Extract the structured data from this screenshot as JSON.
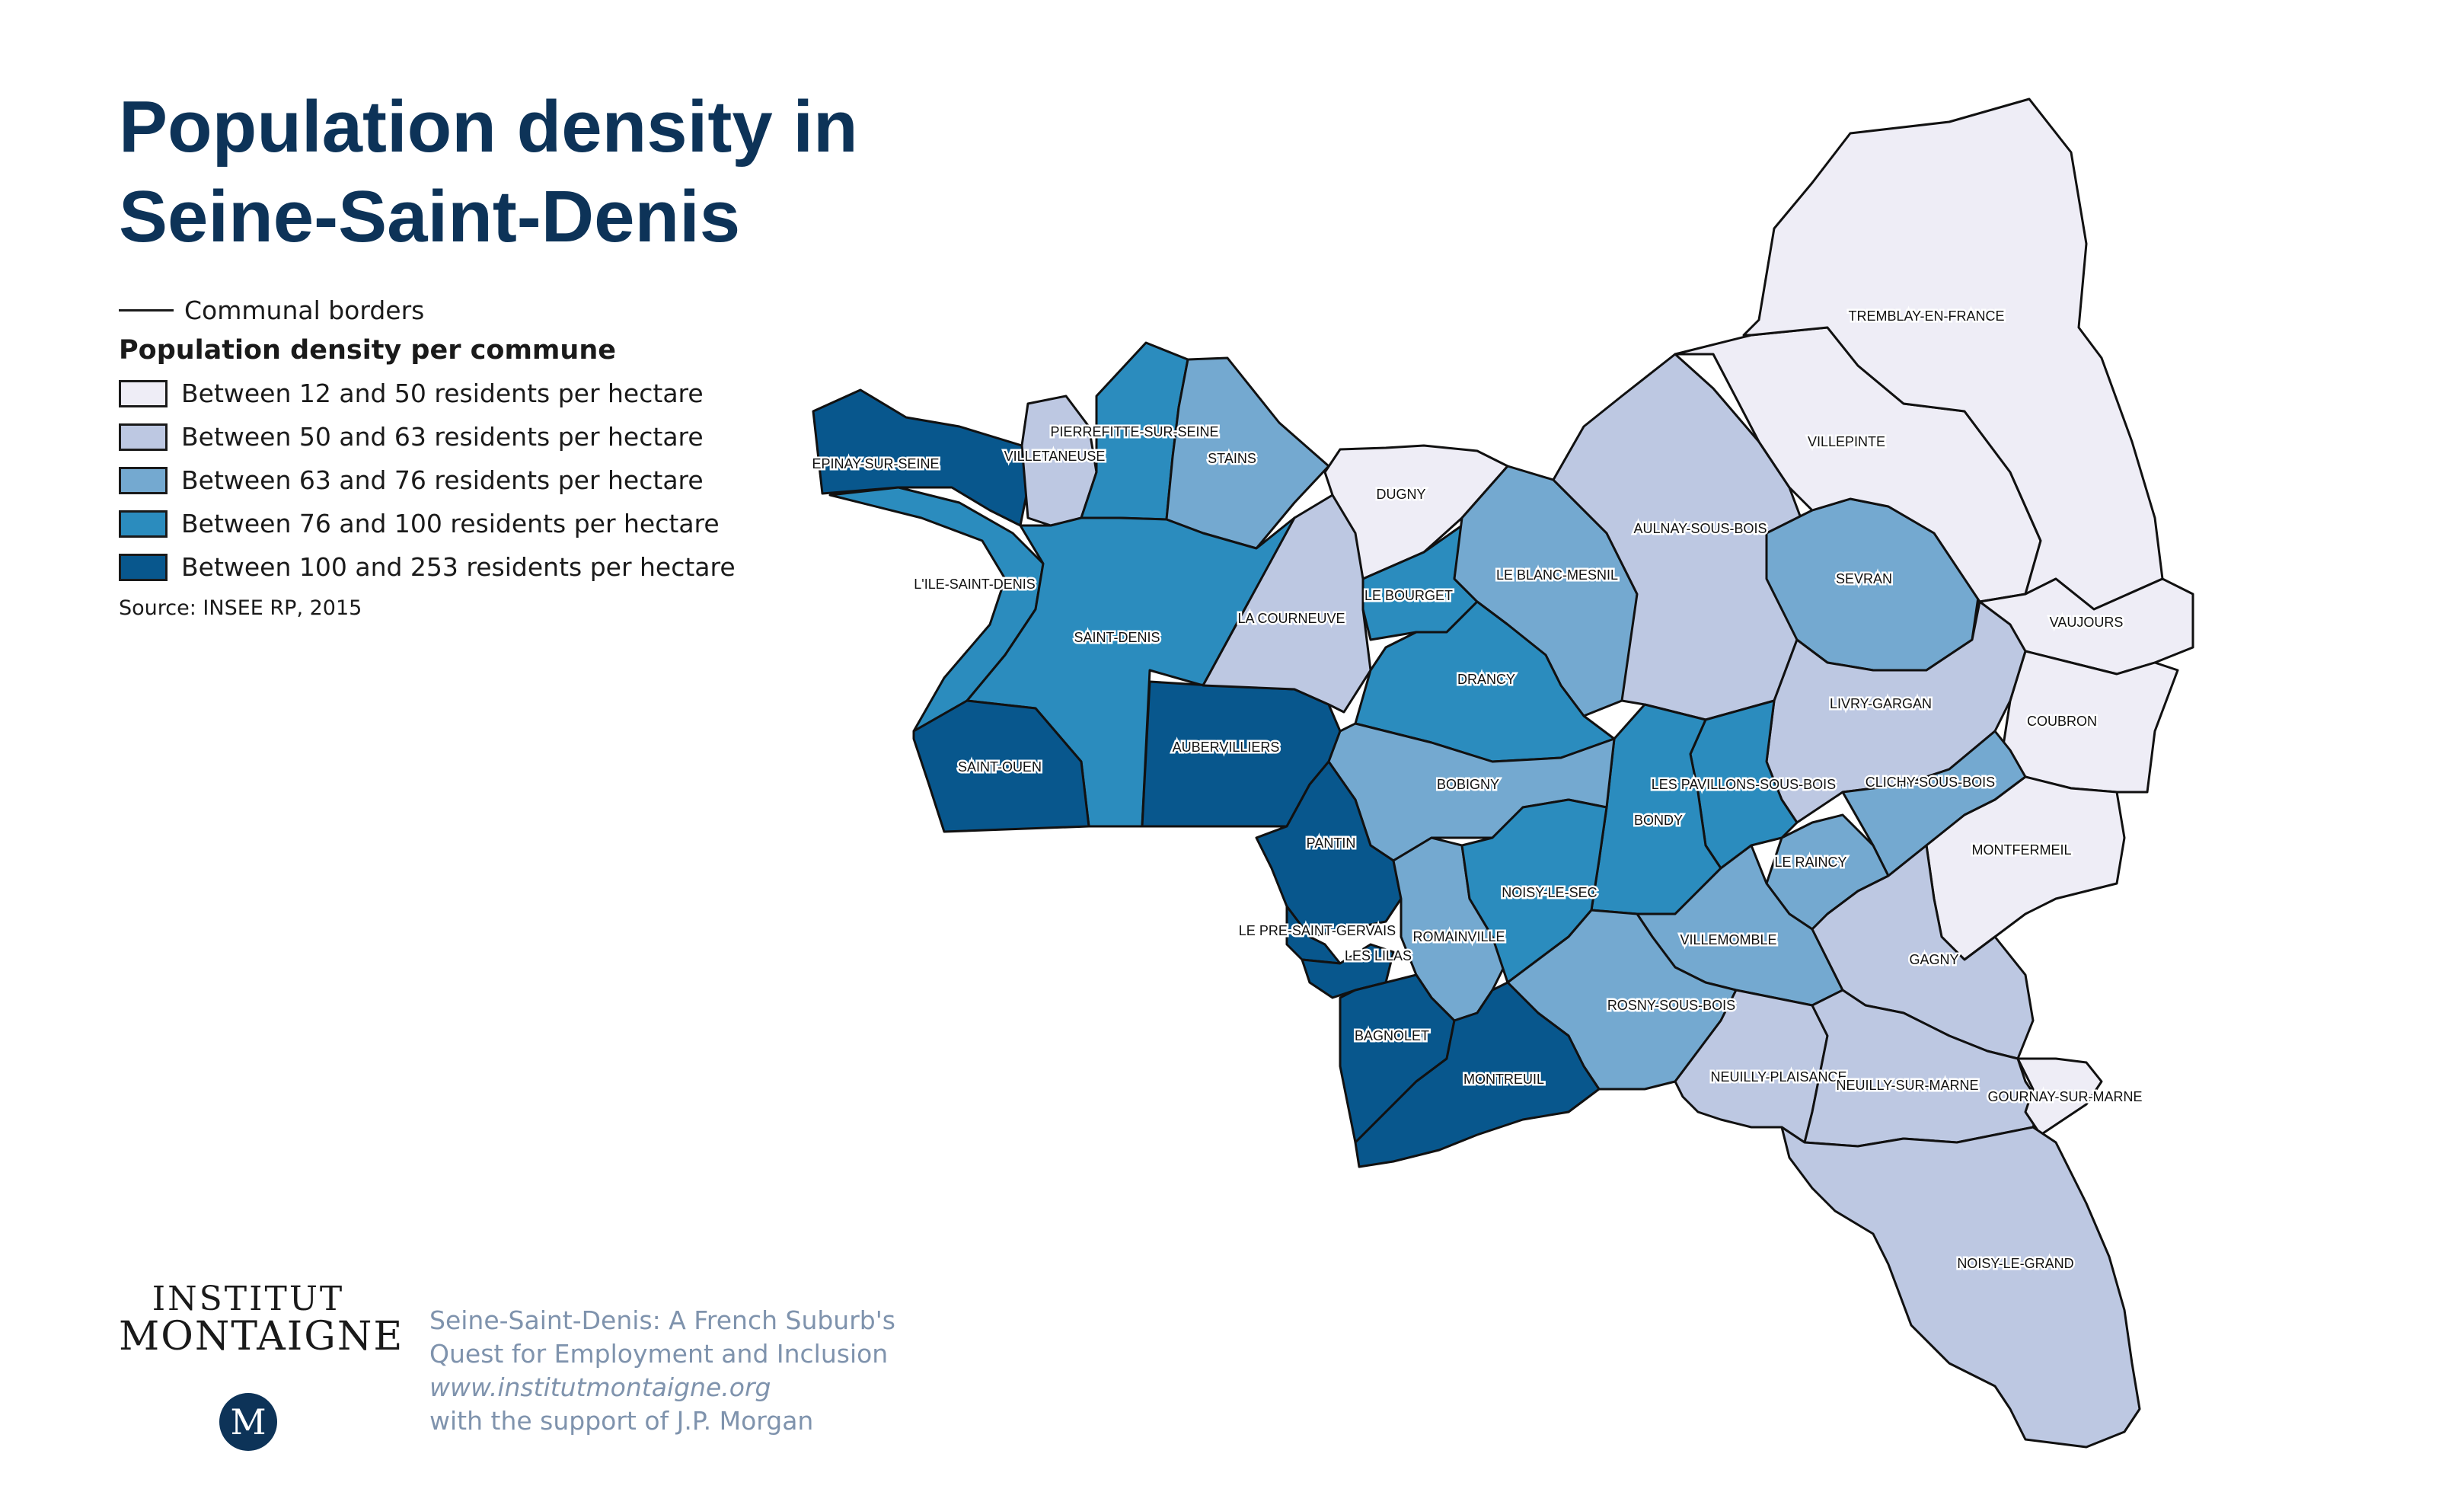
{
  "title_line1": "Population density in",
  "title_line2": "Seine-Saint-Denis",
  "legend": {
    "border_label": "Communal borders",
    "heading": "Population density per commune",
    "classes": [
      {
        "label": "Between 12 and 50 residents per hectare",
        "color": "#eeedf6"
      },
      {
        "label": "Between 50 and 63 residents per hectare",
        "color": "#bdc8e2"
      },
      {
        "label": "Between 63 and 76 residents per hectare",
        "color": "#74a9d0"
      },
      {
        "label": "Between 76 and 100 residents per hectare",
        "color": "#2b8cbe"
      },
      {
        "label": "Between 100 and 253 residents per hectare",
        "color": "#08578d"
      }
    ],
    "source": "Source: INSEE RP, 2015"
  },
  "communes": [
    {
      "name": "EPINAY-SUR-SEINE",
      "class": 4
    },
    {
      "name": "VILLETANEUSE",
      "class": 1
    },
    {
      "name": "PIERREFITTE-SUR-SEINE",
      "class": 3
    },
    {
      "name": "STAINS",
      "class": 2
    },
    {
      "name": "L'ILE-SAINT-DENIS",
      "class": 3
    },
    {
      "name": "SAINT-DENIS",
      "class": 3
    },
    {
      "name": "SAINT-OUEN",
      "class": 4
    },
    {
      "name": "AUBERVILLIERS",
      "class": 4
    },
    {
      "name": "LA COURNEUVE",
      "class": 1
    },
    {
      "name": "DUGNY",
      "class": 0
    },
    {
      "name": "LE BOURGET",
      "class": 3
    },
    {
      "name": "LE BLANC-MESNIL",
      "class": 2
    },
    {
      "name": "DRANCY",
      "class": 3
    },
    {
      "name": "AULNAY-SOUS-BOIS",
      "class": 1
    },
    {
      "name": "SEVRAN",
      "class": 2
    },
    {
      "name": "VILLEPINTE",
      "class": 0
    },
    {
      "name": "TREMBLAY-EN-FRANCE",
      "class": 0
    },
    {
      "name": "VAUJOURS",
      "class": 0
    },
    {
      "name": "COUBRON",
      "class": 0
    },
    {
      "name": "LIVRY-GARGAN",
      "class": 1
    },
    {
      "name": "CLICHY-SOUS-BOIS",
      "class": 2
    },
    {
      "name": "MONTFERMEIL",
      "class": 0
    },
    {
      "name": "LE RAINCY",
      "class": 2
    },
    {
      "name": "LES PAVILLONS-SOUS-BOIS",
      "class": 3
    },
    {
      "name": "BONDY",
      "class": 3
    },
    {
      "name": "BOBIGNY",
      "class": 2
    },
    {
      "name": "PANTIN",
      "class": 4
    },
    {
      "name": "LE PRE-SAINT-GERVAIS",
      "class": 4
    },
    {
      "name": "LES LILAS",
      "class": 4
    },
    {
      "name": "ROMAINVILLE",
      "class": 2
    },
    {
      "name": "NOISY-LE-SEC",
      "class": 3
    },
    {
      "name": "VILLEMOMBLE",
      "class": 2
    },
    {
      "name": "GAGNY",
      "class": 1
    },
    {
      "name": "ROSNY-SOUS-BOIS",
      "class": 2
    },
    {
      "name": "BAGNOLET",
      "class": 4
    },
    {
      "name": "MONTREUIL",
      "class": 4
    },
    {
      "name": "NEUILLY-PLAISANCE",
      "class": 1
    },
    {
      "name": "NEUILLY-SUR-MARNE",
      "class": 1
    },
    {
      "name": "GOURNAY-SUR-MARNE",
      "class": 0
    },
    {
      "name": "NOISY-LE-GRAND",
      "class": 1
    }
  ],
  "brand": {
    "line1": "INSTITUT",
    "line2": "MONTAIGNE",
    "logo_letter": "M"
  },
  "credits": {
    "line1": "Seine-Saint-Denis: A French Suburb's",
    "line2": "Quest for Employment and Inclusion",
    "url": "www.institutmontaigne.org",
    "line4": "with the support of J.P. Morgan"
  }
}
